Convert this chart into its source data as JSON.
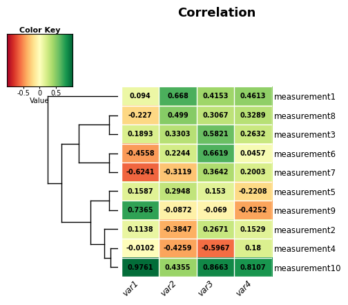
{
  "title": "Correlation",
  "colorkey_title": "Color Key",
  "colorkey_xlabel": "Value",
  "colorkey_ticks": [
    -0.5,
    0,
    0.5
  ],
  "row_labels_ordered": [
    "measurement1",
    "measurement8",
    "measurement3",
    "measurement6",
    "measurement7",
    "measurement5",
    "measurement9",
    "measurement2",
    "measurement4",
    "measurement10"
  ],
  "col_labels": [
    "var1",
    "var2",
    "var3",
    "var4"
  ],
  "data_ordered": [
    [
      0.094,
      0.668,
      0.4153,
      0.4613
    ],
    [
      -0.227,
      0.499,
      0.3067,
      0.3289
    ],
    [
      0.1893,
      0.3303,
      0.5821,
      0.2632
    ],
    [
      -0.4558,
      0.2244,
      0.6619,
      0.0457
    ],
    [
      -0.6241,
      -0.3119,
      0.3642,
      0.2003
    ],
    [
      0.1587,
      0.2948,
      0.153,
      -0.2208
    ],
    [
      0.7365,
      -0.0872,
      -0.069,
      -0.4252
    ],
    [
      0.1138,
      -0.3847,
      0.2671,
      0.1529
    ],
    [
      -0.0102,
      -0.4259,
      -0.5967,
      0.18
    ],
    [
      0.9761,
      0.4355,
      0.8663,
      0.8107
    ]
  ],
  "vmin": -1.0,
  "vmax": 1.0,
  "cmap": "RdYlGn",
  "background_color": "#ffffff",
  "text_fontsize": 7,
  "title_fontsize": 13,
  "label_fontsize": 8.5
}
